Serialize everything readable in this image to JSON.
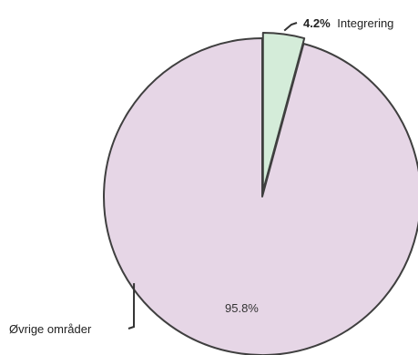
{
  "chart_data": {
    "type": "pie",
    "slices": [
      {
        "label": "Integrering",
        "value": 4.2,
        "display": "4.2%",
        "color": "#d4ecd9"
      },
      {
        "label": "Øvrige områder",
        "value": 95.8,
        "display": "95.8%",
        "color": "#e6d6e6"
      }
    ],
    "legend": "none",
    "label_style": "external labels with leader lines; large slice percentage inside"
  }
}
